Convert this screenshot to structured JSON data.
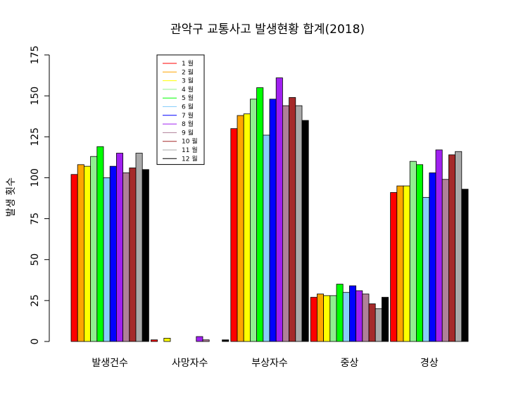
{
  "chart_data": {
    "type": "bar",
    "title": "관악구 교통사고 발생현황 합계(2018)",
    "xlabel": "",
    "ylabel": "발생 횟수",
    "ylim": [
      0,
      175
    ],
    "yticks": [
      0,
      25,
      50,
      75,
      100,
      125,
      150,
      175
    ],
    "categories": [
      "발생건수",
      "사망자수",
      "부상자수",
      "중상",
      "경상"
    ],
    "legend_position": "top-left",
    "grid": false,
    "series": [
      {
        "name": "1 월",
        "color": "#ff0000",
        "values": [
          102,
          1,
          130,
          27,
          91
        ]
      },
      {
        "name": "2 월",
        "color": "#ffa500",
        "values": [
          108,
          0,
          138,
          29,
          95
        ]
      },
      {
        "name": "3 월",
        "color": "#ffff00",
        "values": [
          107,
          2,
          139,
          28,
          95
        ]
      },
      {
        "name": "4 월",
        "color": "#90ee90",
        "values": [
          113,
          0,
          148,
          28,
          110
        ]
      },
      {
        "name": "5 월",
        "color": "#00ff00",
        "values": [
          119,
          0,
          155,
          35,
          108
        ]
      },
      {
        "name": "6 월",
        "color": "#87cefa",
        "values": [
          100,
          0,
          126,
          30,
          88
        ]
      },
      {
        "name": "7 월",
        "color": "#0000ff",
        "values": [
          107,
          0,
          148,
          34,
          103
        ]
      },
      {
        "name": "8 월",
        "color": "#a020f0",
        "values": [
          115,
          3,
          161,
          31,
          117
        ]
      },
      {
        "name": "9 월",
        "color": "#b08098",
        "values": [
          103,
          1,
          144,
          29,
          99
        ]
      },
      {
        "name": "10 월",
        "color": "#a52a2a",
        "values": [
          106,
          0,
          149,
          23,
          114
        ]
      },
      {
        "name": "11 월",
        "color": "#a9a9a9",
        "values": [
          115,
          0,
          144,
          20,
          116
        ]
      },
      {
        "name": "12 월",
        "color": "#000000",
        "values": [
          105,
          1,
          135,
          27,
          93
        ]
      }
    ]
  }
}
